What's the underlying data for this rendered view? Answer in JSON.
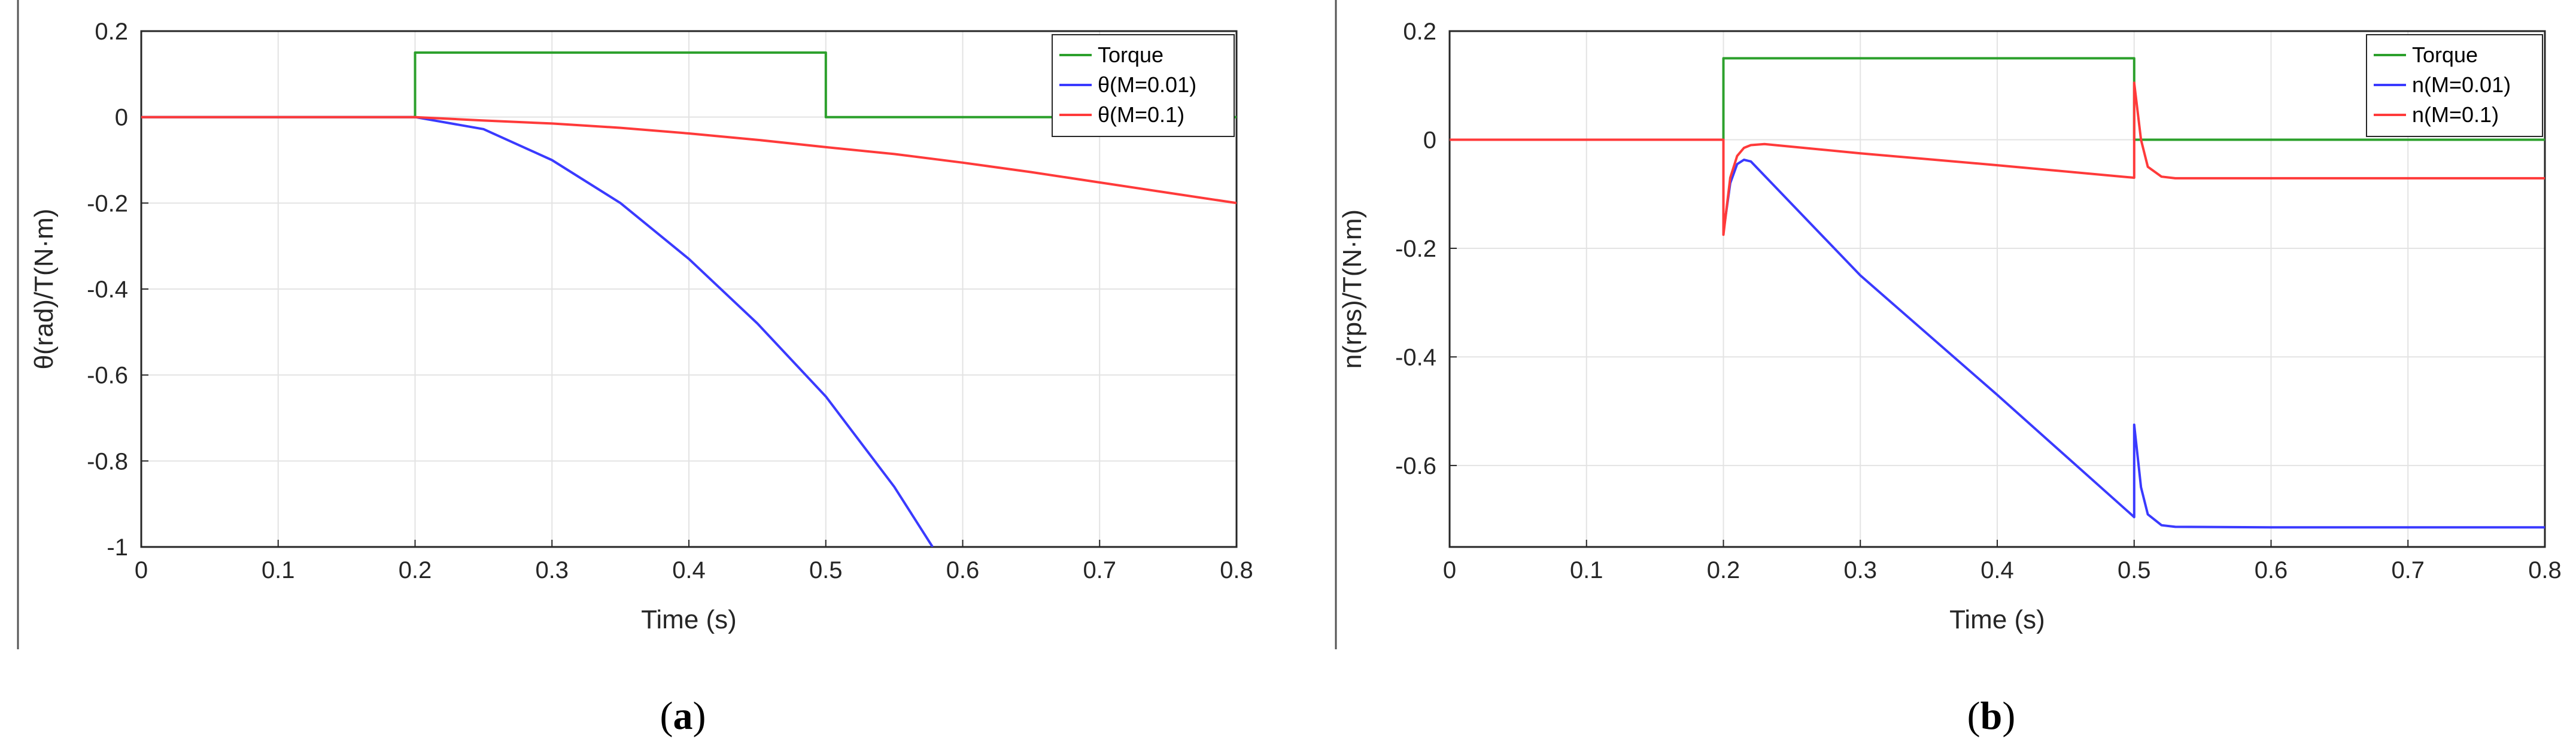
{
  "chart_data": [
    {
      "type": "line",
      "panel_label": "(a)",
      "panel_letter": "a",
      "title": "",
      "xlabel": "Time (s)",
      "ylabel": "θ(rad)/T(N·m)",
      "xlim": [
        0,
        0.8
      ],
      "ylim": [
        -1,
        0.2
      ],
      "xticks": [
        "0",
        "0.1",
        "0.2",
        "0.3",
        "0.4",
        "0.5",
        "0.6",
        "0.7",
        "0.8"
      ],
      "yticks": [
        "0.2",
        "0",
        "-0.2",
        "-0.4",
        "-0.6",
        "-0.8",
        "-1"
      ],
      "grid": true,
      "legend_position": "top-right",
      "series": [
        {
          "name": "Torque",
          "color": "#2ca02c",
          "x": [
            0,
            0.2,
            0.2,
            0.5,
            0.5,
            0.8
          ],
          "y": [
            0,
            0,
            0.15,
            0.15,
            0,
            0
          ]
        },
        {
          "name": "θ(M=0.01)",
          "color": "#3a3aff",
          "x": [
            0,
            0.2,
            0.25,
            0.3,
            0.35,
            0.4,
            0.45,
            0.5,
            0.55,
            0.578
          ],
          "y": [
            0,
            0,
            -0.028,
            -0.1,
            -0.2,
            -0.33,
            -0.48,
            -0.65,
            -0.86,
            -1.0
          ]
        },
        {
          "name": "θ(M=0.1)",
          "color": "#ff3a3a",
          "x": [
            0,
            0.2,
            0.25,
            0.3,
            0.35,
            0.4,
            0.45,
            0.5,
            0.55,
            0.6,
            0.65,
            0.7,
            0.75,
            0.8
          ],
          "y": [
            0,
            0,
            -0.008,
            -0.015,
            -0.025,
            -0.038,
            -0.053,
            -0.07,
            -0.086,
            -0.106,
            -0.128,
            -0.152,
            -0.176,
            -0.2
          ]
        }
      ]
    },
    {
      "type": "line",
      "panel_label": "(b)",
      "panel_letter": "b",
      "title": "",
      "xlabel": "Time (s)",
      "ylabel": "n(rps)/T(N·m)",
      "xlim": [
        0,
        0.8
      ],
      "ylim": [
        -0.75,
        0.2
      ],
      "xticks": [
        "0",
        "0.1",
        "0.2",
        "0.3",
        "0.4",
        "0.5",
        "0.6",
        "0.7",
        "0.8"
      ],
      "yticks": [
        "0.2",
        "0",
        "-0.2",
        "-0.4",
        "-0.6"
      ],
      "grid": true,
      "legend_position": "top-right",
      "series": [
        {
          "name": "Torque",
          "color": "#2ca02c",
          "x": [
            0,
            0.2,
            0.2,
            0.5,
            0.5,
            0.8
          ],
          "y": [
            0,
            0,
            0.15,
            0.15,
            0,
            0
          ]
        },
        {
          "name": "n(M=0.01)",
          "color": "#3a3aff",
          "x": [
            0,
            0.2,
            0.2,
            0.205,
            0.21,
            0.215,
            0.22,
            0.3,
            0.4,
            0.5,
            0.5,
            0.505,
            0.51,
            0.52,
            0.53,
            0.6,
            0.8
          ],
          "y": [
            0,
            0,
            -0.17,
            -0.08,
            -0.045,
            -0.037,
            -0.04,
            -0.25,
            -0.47,
            -0.695,
            -0.525,
            -0.64,
            -0.69,
            -0.71,
            -0.713,
            -0.714,
            -0.714
          ]
        },
        {
          "name": "n(M=0.1)",
          "color": "#ff3a3a",
          "x": [
            0,
            0.2,
            0.2,
            0.205,
            0.21,
            0.215,
            0.22,
            0.23,
            0.3,
            0.4,
            0.5,
            0.5,
            0.505,
            0.51,
            0.52,
            0.53,
            0.6,
            0.8
          ],
          "y": [
            0,
            0,
            -0.175,
            -0.07,
            -0.03,
            -0.015,
            -0.01,
            -0.008,
            -0.025,
            -0.047,
            -0.07,
            0.105,
            0.0,
            -0.05,
            -0.068,
            -0.071,
            -0.071,
            -0.071
          ]
        }
      ]
    }
  ]
}
